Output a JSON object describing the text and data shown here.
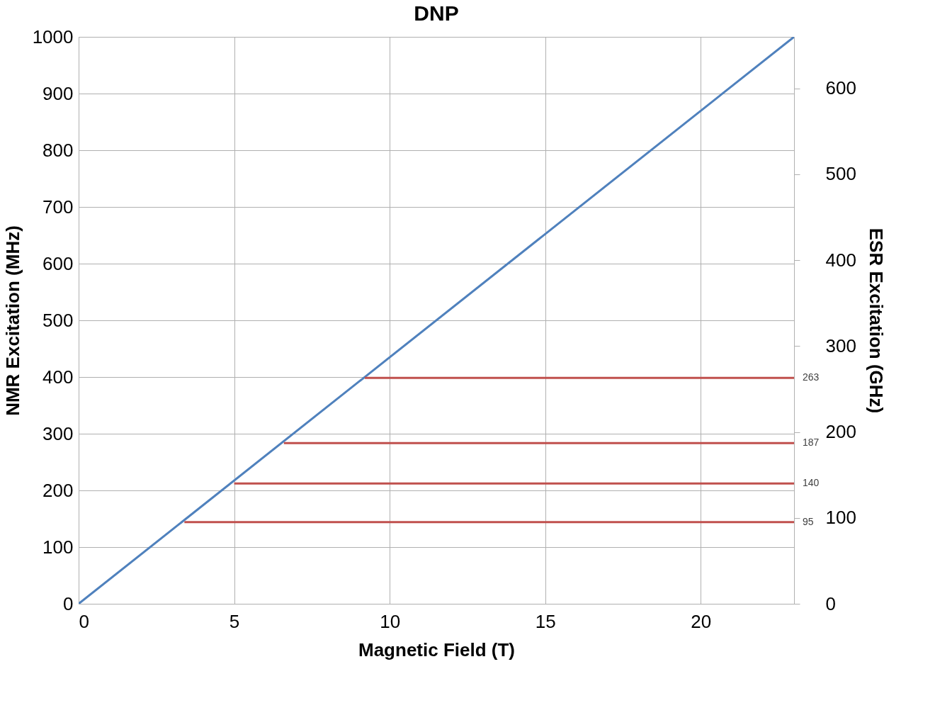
{
  "chart_data": {
    "type": "line",
    "title": "DNP",
    "xlabel": "Magnetic Field (T)",
    "ylabel": "NMR Excitation (MHz)",
    "y2label": "ESR Excitation (GHz)",
    "xlim": [
      0,
      23
    ],
    "xticks": [
      0,
      5,
      10,
      15,
      20
    ],
    "ylim": [
      0,
      1000
    ],
    "yticks": [
      0,
      100,
      200,
      300,
      400,
      500,
      600,
      700,
      800,
      900,
      {
        "value": 1000,
        "label": "1000"
      }
    ],
    "y2lim": [
      0,
      660
    ],
    "y2ticks": [
      0,
      100,
      200,
      300,
      400,
      500,
      600
    ],
    "grid": true,
    "legend": false,
    "marker": "none",
    "line_style": "solid",
    "series": [
      {
        "color": "#4f81bd",
        "x": [
          0,
          23
        ],
        "values": [
          0,
          1000
        ]
      },
      {
        "color": "#c0504d",
        "axis": "y2",
        "x": [
          9.2,
          23
        ],
        "values": [
          263,
          263
        ],
        "value_labels": [
          null,
          "263"
        ]
      },
      {
        "color": "#c0504d",
        "axis": "y2",
        "x": [
          6.6,
          23
        ],
        "values": [
          187,
          187
        ],
        "value_labels": [
          null,
          "187"
        ]
      },
      {
        "color": "#c0504d",
        "axis": "y2",
        "x": [
          5.0,
          23
        ],
        "values": [
          140,
          140
        ],
        "value_labels": [
          null,
          "140"
        ]
      },
      {
        "color": "#c0504d",
        "axis": "y2",
        "x": [
          3.4,
          23
        ],
        "values": [
          95,
          95
        ],
        "value_labels": [
          null,
          "95"
        ]
      }
    ]
  }
}
